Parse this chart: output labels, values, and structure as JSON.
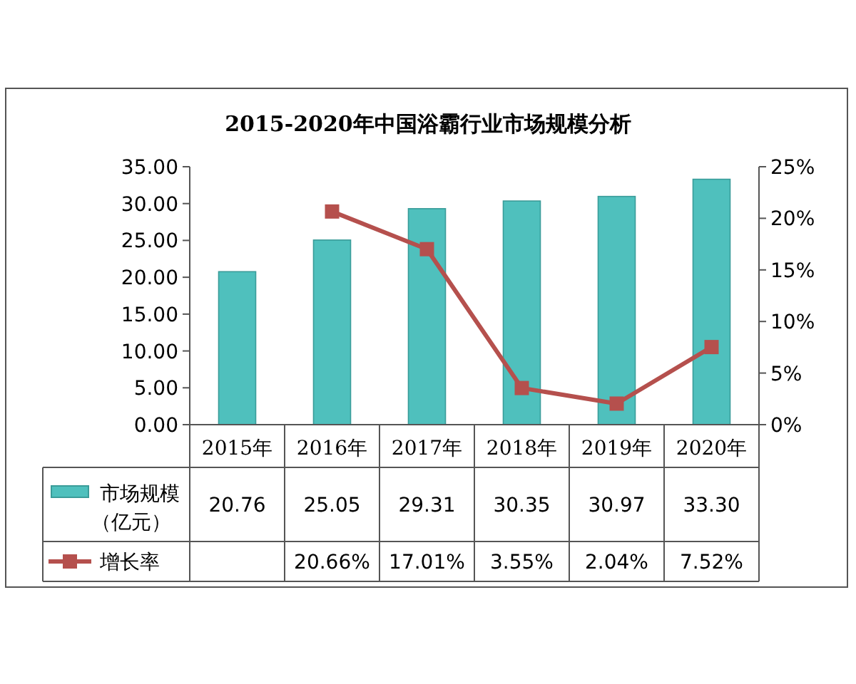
{
  "chart_data": {
    "type": "bar",
    "title": "2015-2020年中国浴霸行业市场规模分析",
    "categories": [
      "2015年",
      "2016年",
      "2017年",
      "2018年",
      "2019年",
      "2020年"
    ],
    "series": [
      {
        "name": "市场规模（亿元）",
        "color": "#4fc0bd",
        "values": [
          20.76,
          25.05,
          29.31,
          30.35,
          30.97,
          33.3
        ],
        "value_labels": [
          "20.76",
          "25.05",
          "29.31",
          "30.35",
          "30.97",
          "33.30"
        ]
      },
      {
        "name": "增长率",
        "type": "line",
        "axis": "y2",
        "color": "#b5504d",
        "marker": "square",
        "line_style": "solid",
        "values": [
          null,
          20.66,
          17.01,
          3.55,
          2.04,
          7.52
        ],
        "value_labels": [
          null,
          "20.66%",
          "17.01%",
          "3.55%",
          "2.04%",
          "7.52%"
        ]
      }
    ],
    "ylim": [
      0,
      35
    ],
    "yticks": [
      {
        "value": 0,
        "label": "0.00"
      },
      {
        "value": 5,
        "label": "5.00"
      },
      {
        "value": 10,
        "label": "10.00"
      },
      {
        "value": 15,
        "label": "15.00"
      },
      {
        "value": 20,
        "label": "20.00"
      },
      {
        "value": 25,
        "label": "25.00"
      },
      {
        "value": 30,
        "label": "30.00"
      },
      {
        "value": 35,
        "label": "35.00"
      }
    ],
    "y2lim": [
      0,
      25
    ],
    "y2ticks": [
      {
        "value": 0,
        "label": "0%"
      },
      {
        "value": 5,
        "label": "5%"
      },
      {
        "value": 10,
        "label": "10%"
      },
      {
        "value": 15,
        "label": "15%"
      },
      {
        "value": 20,
        "label": "20%"
      },
      {
        "value": 25,
        "label": "25%"
      }
    ],
    "grid": false,
    "legend": "bottom"
  }
}
